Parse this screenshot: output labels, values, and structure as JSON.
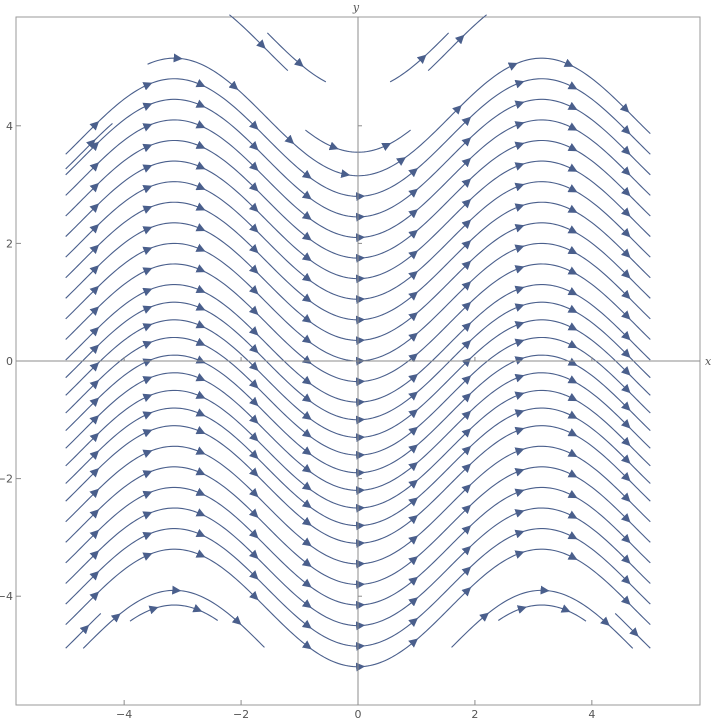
{
  "chart_data": {
    "type": "streamplot",
    "field": {
      "dx": "1",
      "dy": "sin(x)"
    },
    "xlabel": "x",
    "ylabel": "y",
    "xlim": [
      -5.85,
      5.85
    ],
    "ylim": [
      -5.85,
      5.85
    ],
    "stream_x_range": [
      -5,
      5
    ],
    "xticks": [
      -4,
      -2,
      0,
      2,
      4
    ],
    "yticks": [
      -4,
      -2,
      0,
      2,
      4
    ],
    "xtick_labels": [
      "−4",
      "−2",
      "0",
      "2",
      "4"
    ],
    "ytick_labels": [
      "−4",
      "−2",
      "0",
      "2",
      "4"
    ],
    "streamlines": [
      {
        "c": -4.6,
        "x0": -5,
        "x1": -4.4
      },
      {
        "c": -4.2,
        "x0": -5,
        "x1": 5
      },
      {
        "c": -3.85,
        "x0": -5,
        "x1": 5
      },
      {
        "c": -3.5,
        "x0": -5,
        "x1": 5
      },
      {
        "c": -3.15,
        "x0": -5,
        "x1": 5
      },
      {
        "c": -2.8,
        "x0": -5,
        "x1": 5
      },
      {
        "c": -2.45,
        "x0": -5,
        "x1": 5
      },
      {
        "c": -2.1,
        "x0": -5,
        "x1": 5
      },
      {
        "c": -1.8,
        "x0": -5,
        "x1": 5
      },
      {
        "c": -1.5,
        "x0": -5,
        "x1": 5
      },
      {
        "c": -1.2,
        "x0": -5,
        "x1": 5
      },
      {
        "c": -0.9,
        "x0": -5,
        "x1": 5
      },
      {
        "c": -0.6,
        "x0": -5,
        "x1": 5
      },
      {
        "c": -0.3,
        "x0": -5,
        "x1": 5
      },
      {
        "c": 0.0,
        "x0": -5,
        "x1": 5
      },
      {
        "c": 0.3,
        "x0": -5,
        "x1": 5
      },
      {
        "c": 0.65,
        "x0": -5,
        "x1": 5
      },
      {
        "c": 1.0,
        "x0": -5,
        "x1": 5
      },
      {
        "c": 1.35,
        "x0": -5,
        "x1": 5
      },
      {
        "c": 1.7,
        "x0": -5,
        "x1": 5
      },
      {
        "c": 2.05,
        "x0": -5,
        "x1": 5
      },
      {
        "c": 2.4,
        "x0": -5,
        "x1": 5
      },
      {
        "c": 2.75,
        "x0": -5,
        "x1": 5
      },
      {
        "c": 3.1,
        "x0": -5,
        "x1": 5
      },
      {
        "c": 3.45,
        "x0": -5,
        "x1": 5
      },
      {
        "c": 3.8,
        "x0": -5,
        "x1": 5
      },
      {
        "c": 4.15,
        "x0": -3.6,
        "x1": 5
      },
      {
        "c": 4.55,
        "x0": -0.9,
        "x1": 0.9
      },
      {
        "c": -5.15,
        "x0": -3.9,
        "x1": -2.4
      },
      {
        "c": -5.15,
        "x0": 2.4,
        "x1": 3.9
      },
      {
        "c": -4.9,
        "x0": -4.7,
        "x1": -1.6
      },
      {
        "c": -4.9,
        "x0": 1.6,
        "x1": 4.7
      },
      {
        "c": -4.6,
        "x0": 4.4,
        "x1": 5
      },
      {
        "c": 3.55,
        "x0": -5,
        "x1": -4.2
      },
      {
        "c": 5.3,
        "x0": -2.2,
        "x1": -1.2
      },
      {
        "c": 5.3,
        "x0": 1.2,
        "x1": 2.2
      },
      {
        "c": 5.6,
        "x0": -1.55,
        "x1": -0.55
      },
      {
        "c": 5.6,
        "x0": 0.55,
        "x1": 1.55
      }
    ],
    "colors": {
      "stream": "#4a5f8c",
      "axis": "#8c8c8c",
      "frame": "#9a9a9a",
      "tick_text": "#555555"
    }
  }
}
